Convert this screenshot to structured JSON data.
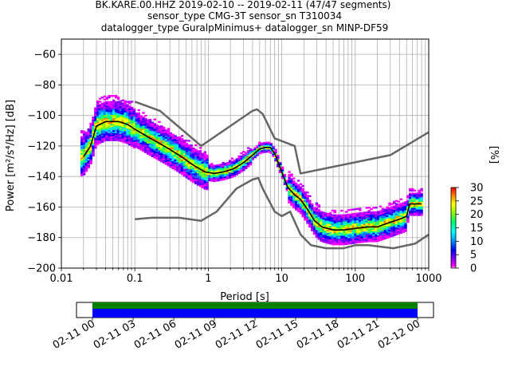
{
  "title_lines": [
    "BK.KARE.00.HHZ   2019-02-10 -- 2019-02-11  (47/47 segments)",
    "sensor_type CMG-3T sensor_sn T310034",
    "datalogger_type GuralpMinimus+ datalogger_sn MINP-DF59"
  ],
  "colorbar": {
    "label": "[%]",
    "ticks": [
      "0",
      "5",
      "10",
      "15",
      "20",
      "25",
      "30"
    ],
    "range": [
      0,
      30
    ]
  },
  "timeline": {
    "tick_labels": [
      "02-11 00",
      "02-11 03",
      "02-11 06",
      "02-11 09",
      "02-11 12",
      "02-11 15",
      "02-11 18",
      "02-11 21",
      "02-12 00"
    ],
    "coverage_color": "#0000ff",
    "gap_free_color": "#008000"
  },
  "colors": {
    "mode_line": "#000000",
    "noise_model": "#666666",
    "grid": "#b0b0b0"
  },
  "chart_data": {
    "type": "heatmap",
    "xscale": "log",
    "xlabel": "Period [s]",
    "ylabel": "Power [m²/s⁴/Hz] [dB]",
    "xlim": [
      0.01,
      1000
    ],
    "ylim": [
      -200,
      -50
    ],
    "xticks": [
      {
        "v": 0.01,
        "label": "0.01"
      },
      {
        "v": 0.1,
        "label": "0.1"
      },
      {
        "v": 1,
        "label": "1"
      },
      {
        "v": 10,
        "label": "10"
      },
      {
        "v": 100,
        "label": "100"
      },
      {
        "v": 1000,
        "label": "1000"
      }
    ],
    "yticks": [
      {
        "v": -60,
        "label": "−60"
      },
      {
        "v": -80,
        "label": "−80"
      },
      {
        "v": -100,
        "label": "−100"
      },
      {
        "v": -120,
        "label": "−120"
      },
      {
        "v": -140,
        "label": "−140"
      },
      {
        "v": -160,
        "label": "−160"
      },
      {
        "v": -180,
        "label": "−180"
      },
      {
        "v": -200,
        "label": "−200"
      }
    ],
    "grid": true,
    "high_noise_model": [
      [
        0.1,
        -91
      ],
      [
        0.22,
        -97
      ],
      [
        0.8,
        -120
      ],
      [
        4,
        -97
      ],
      [
        4.6,
        -96
      ],
      [
        5.5,
        -99
      ],
      [
        8,
        -115
      ],
      [
        15,
        -120
      ],
      [
        18,
        -138
      ],
      [
        300,
        -126
      ],
      [
        1000,
        -111
      ]
    ],
    "low_noise_model": [
      [
        0.1,
        -168
      ],
      [
        0.17,
        -167
      ],
      [
        0.4,
        -167
      ],
      [
        0.8,
        -169
      ],
      [
        1.3,
        -163
      ],
      [
        2.4,
        -148
      ],
      [
        4,
        -142
      ],
      [
        4.8,
        -141
      ],
      [
        5.5,
        -148
      ],
      [
        8,
        -163
      ],
      [
        10,
        -166
      ],
      [
        13,
        -163
      ],
      [
        18,
        -178
      ],
      [
        25,
        -185
      ],
      [
        40,
        -187
      ],
      [
        70,
        -187
      ],
      [
        100,
        -185
      ],
      [
        150,
        -185
      ],
      [
        330,
        -187
      ],
      [
        650,
        -184
      ],
      [
        1000,
        -178
      ]
    ],
    "mode": [
      [
        0.02,
        -127
      ],
      [
        0.025,
        -120
      ],
      [
        0.03,
        -107
      ],
      [
        0.04,
        -104
      ],
      [
        0.06,
        -104
      ],
      [
        0.08,
        -106
      ],
      [
        0.1,
        -109
      ],
      [
        0.15,
        -114
      ],
      [
        0.25,
        -120
      ],
      [
        0.4,
        -126
      ],
      [
        0.6,
        -132
      ],
      [
        0.9,
        -137
      ],
      [
        1.2,
        -138
      ],
      [
        1.6,
        -137
      ],
      [
        2.2,
        -135
      ],
      [
        3,
        -131
      ],
      [
        4,
        -126
      ],
      [
        5,
        -122
      ],
      [
        6,
        -121
      ],
      [
        7,
        -121
      ],
      [
        8,
        -125
      ],
      [
        10,
        -137
      ],
      [
        12,
        -147
      ],
      [
        15,
        -152
      ],
      [
        18,
        -155
      ],
      [
        22,
        -161
      ],
      [
        28,
        -169
      ],
      [
        35,
        -173
      ],
      [
        50,
        -175
      ],
      [
        70,
        -175
      ],
      [
        100,
        -174
      ],
      [
        150,
        -173
      ],
      [
        200,
        -173
      ],
      [
        300,
        -170
      ],
      [
        450,
        -167
      ],
      [
        500,
        -166
      ],
      [
        550,
        -158
      ],
      [
        800,
        -158
      ]
    ]
  }
}
